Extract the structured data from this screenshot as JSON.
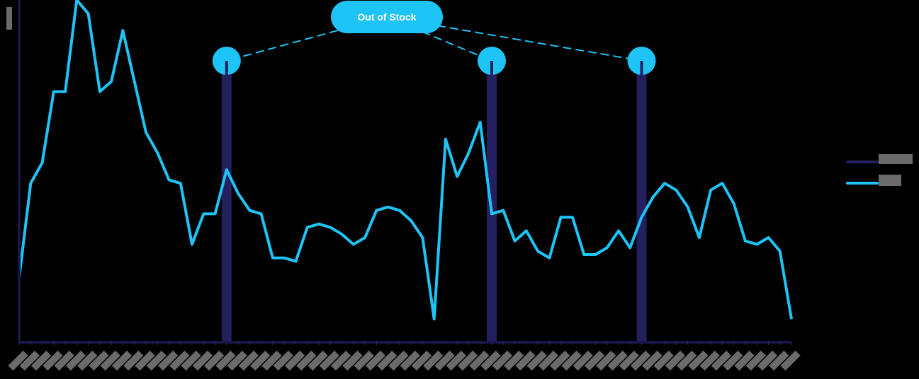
{
  "chart_data": {
    "type": "line",
    "title": "",
    "xlabel": "",
    "ylabel": "",
    "legend_position": "right",
    "grid": false,
    "labels_redacted": true,
    "x_tick_count": 68,
    "series": [
      {
        "name": "",
        "kind": "bar",
        "color": "#241f5e",
        "description": "Vertical stock-out markers",
        "bars": [
          {
            "x_index": 18,
            "value": 100
          },
          {
            "x_index": 41,
            "value": 100
          },
          {
            "x_index": 54,
            "value": 100
          }
        ]
      },
      {
        "name": "",
        "kind": "line",
        "color": "#1ec4f6",
        "values": [
          18,
          46,
          52,
          73,
          73,
          100,
          96,
          73,
          76,
          91,
          76,
          61,
          55,
          47,
          46,
          28,
          37,
          37,
          50,
          43,
          38,
          37,
          24,
          24,
          23,
          33,
          34,
          33,
          31,
          28,
          30,
          38,
          39,
          38,
          35,
          30,
          6,
          59,
          48,
          55,
          64,
          37,
          38,
          29,
          32,
          26,
          24,
          36,
          36,
          25,
          25,
          27,
          32,
          27,
          36,
          42,
          46,
          44,
          39,
          30,
          44,
          46,
          40,
          29,
          28,
          30,
          26,
          6
        ]
      }
    ],
    "annotations": [
      {
        "text": "Out of Stock",
        "points_to_x_indices": [
          18,
          41,
          54
        ]
      }
    ]
  },
  "callout": {
    "label": "Out of Stock"
  },
  "colors": {
    "background": "#000000",
    "line": "#1ec4f6",
    "bars": "#241f5e",
    "axis": "#1a1648",
    "redacted": "#6b6b6b"
  },
  "legend": {
    "items": [
      {
        "label": "",
        "color": "#241f5e"
      },
      {
        "label": "",
        "color": "#1ec4f6"
      }
    ]
  }
}
